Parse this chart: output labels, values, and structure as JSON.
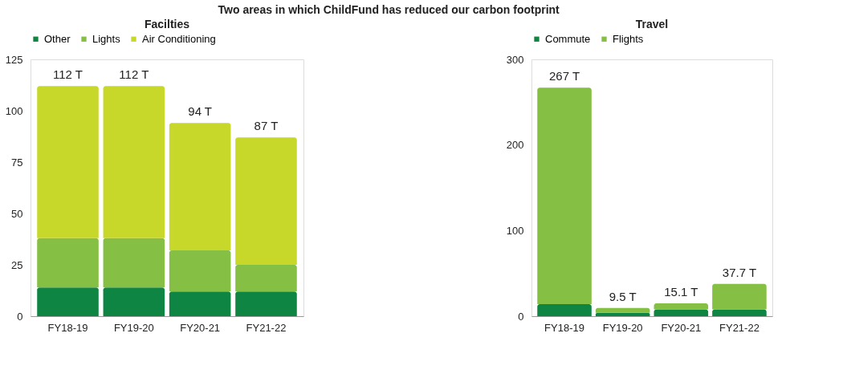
{
  "chart_data": [
    {
      "type": "bar",
      "title": "Facilties",
      "annotations": [
        "Two areas in which ChildFund has reduced our carbon footprint"
      ],
      "categories": [
        "FY18-19",
        "FY19-20",
        "FY20-21",
        "FY21-22"
      ],
      "stacked": true,
      "legend": "top",
      "grid": false,
      "ylim": [
        0,
        125
      ],
      "yticks": [
        0,
        25,
        50,
        75,
        100,
        125
      ],
      "totals": [
        "112 T",
        "112 T",
        "94 T",
        "87 T"
      ],
      "series": [
        {
          "name": "Other",
          "color": "#0e8542",
          "values": [
            14,
            14,
            12,
            12
          ]
        },
        {
          "name": "Lights",
          "color": "#85bf43",
          "values": [
            24,
            24,
            20,
            13
          ]
        },
        {
          "name": "Air Conditioning",
          "color": "#c8d82b",
          "values": [
            74,
            74,
            62,
            62
          ]
        }
      ]
    },
    {
      "type": "bar",
      "title": "Travel",
      "categories": [
        "FY18-19",
        "FY19-20",
        "FY20-21",
        "FY21-22"
      ],
      "stacked": true,
      "legend": "top",
      "grid": false,
      "ylim": [
        0,
        300
      ],
      "yticks": [
        0,
        100,
        200,
        300
      ],
      "totals": [
        "267 T",
        "9.5 T",
        "15.1 T",
        "37.7 T"
      ],
      "series": [
        {
          "name": "Commute",
          "color": "#0e8542",
          "values": [
            14,
            4,
            8,
            8
          ]
        },
        {
          "name": "Flights",
          "color": "#85bf43",
          "values": [
            253,
            5.5,
            7.1,
            29.7
          ]
        }
      ]
    }
  ]
}
